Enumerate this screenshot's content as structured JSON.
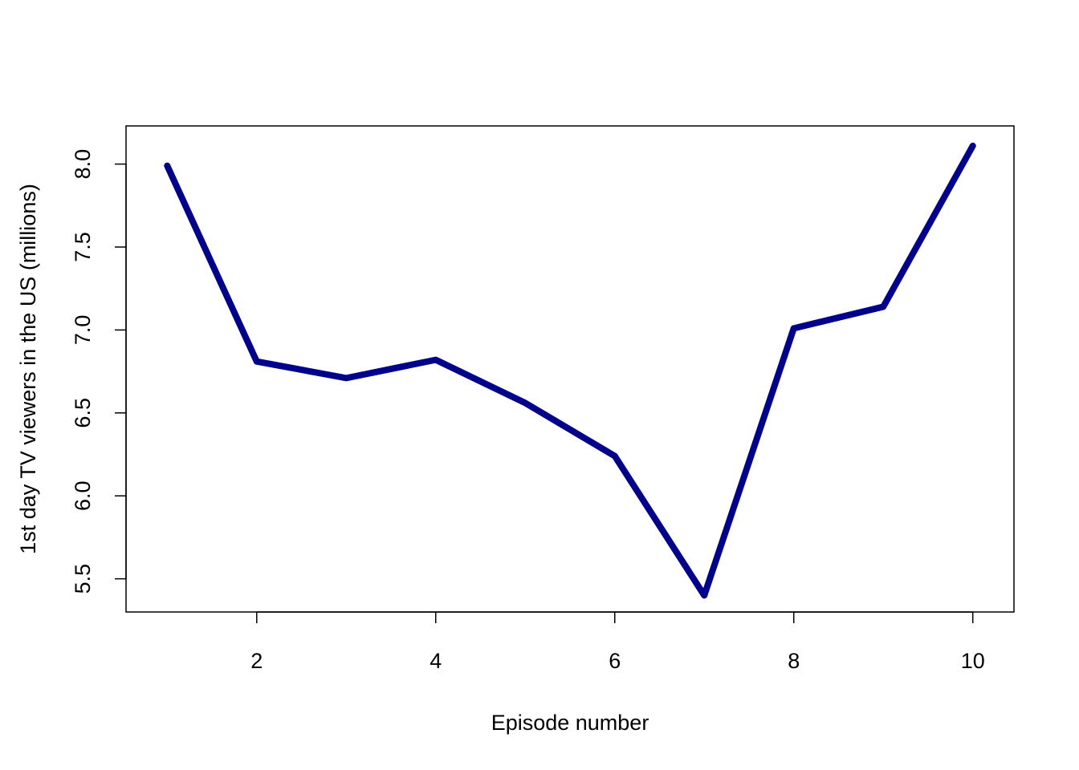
{
  "chart_data": {
    "type": "line",
    "title": "",
    "xlabel": "Episode number",
    "ylabel": "1st day TV viewers in the US (millions)",
    "xlim": [
      0.54,
      10.46
    ],
    "ylim": [
      5.3,
      8.23
    ],
    "x_ticks": [
      2,
      4,
      6,
      8,
      10
    ],
    "y_ticks": [
      5.5,
      6.0,
      6.5,
      7.0,
      7.5,
      8.0
    ],
    "x_tick_labels": [
      "2",
      "4",
      "6",
      "8",
      "10"
    ],
    "y_tick_labels": [
      "5.5",
      "6.0",
      "6.5",
      "7.0",
      "7.5",
      "8.0"
    ],
    "grid": false,
    "legend": "none",
    "line_color": "#00008B",
    "series": [
      {
        "x": [
          1,
          2,
          3,
          4,
          5,
          6,
          7,
          8,
          9,
          10
        ],
        "values": [
          7.99,
          6.81,
          6.71,
          6.82,
          6.56,
          6.24,
          5.4,
          7.01,
          7.14,
          8.11
        ]
      }
    ]
  }
}
